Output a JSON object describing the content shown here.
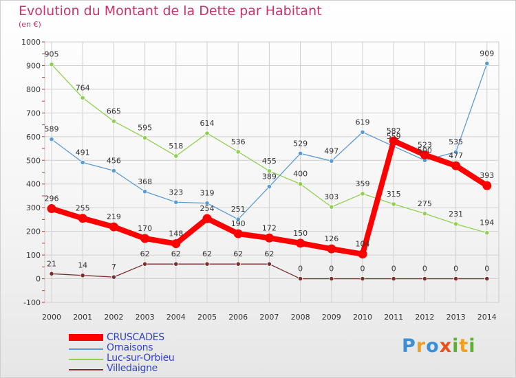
{
  "header": {
    "title": "Evolution du Montant de la Dette par Habitant",
    "subtitle": "(en €)"
  },
  "logo_text": "Proxiti",
  "colors": {
    "title": "#c8326e",
    "grid": "#d0d0d0",
    "legend_text": "#3344cc"
  },
  "chart_data": {
    "type": "line",
    "title": "Evolution du Montant de la Dette par Habitant",
    "subtitle": "(en €)",
    "x": [
      "2000",
      "2001",
      "2002",
      "2003",
      "2004",
      "2005",
      "2006",
      "2007",
      "2008",
      "2009",
      "2010",
      "2011",
      "2012",
      "2013",
      "2014"
    ],
    "ylim": [
      -100,
      1000
    ],
    "yticks": [
      -100,
      0,
      100,
      200,
      300,
      400,
      500,
      600,
      700,
      800,
      900,
      1000
    ],
    "grid": true,
    "legend_position": "bottom-left",
    "series": [
      {
        "name": "CRUSCADES",
        "color": "#ff0000",
        "values": [
          296,
          255,
          219,
          170,
          148,
          254,
          190,
          172,
          150,
          126,
          104,
          582,
          523,
          477,
          393
        ],
        "labels": [
          "296",
          "255",
          "219",
          "170",
          "148",
          "254",
          "190",
          "172",
          "150",
          "126",
          "104",
          "582",
          "523",
          "477",
          "393"
        ],
        "emphasis": true
      },
      {
        "name": "Ornaisons",
        "color": "#5b9bd5",
        "values": [
          589,
          491,
          456,
          368,
          323,
          319,
          251,
          389,
          529,
          497,
          619,
          559,
          500,
          535,
          909
        ],
        "labels": [
          "589",
          "491",
          "456",
          "368",
          "323",
          "319",
          "251",
          "389",
          "529",
          "497",
          "619",
          "559",
          "500",
          "535",
          "909"
        ]
      },
      {
        "name": "Luc-sur-Orbieu",
        "color": "#8fd14f",
        "values": [
          905,
          764,
          665,
          595,
          518,
          614,
          536,
          455,
          400,
          303,
          359,
          315,
          275,
          231,
          194
        ],
        "labels": [
          "905",
          "764",
          "665",
          "595",
          "518",
          "614",
          "536",
          "455",
          "400",
          "303",
          "359",
          "315",
          "275",
          "231",
          "194"
        ]
      },
      {
        "name": "Villedaigne",
        "color": "#7a2e2e",
        "values": [
          21,
          14,
          7,
          62,
          62,
          62,
          62,
          62,
          0,
          0,
          0,
          0,
          0,
          0,
          0
        ],
        "labels": [
          "21",
          "14",
          "7",
          "62",
          "62",
          "62",
          "62",
          "62",
          "0",
          "0",
          "0",
          "0",
          "0",
          "0",
          "0"
        ]
      }
    ]
  }
}
